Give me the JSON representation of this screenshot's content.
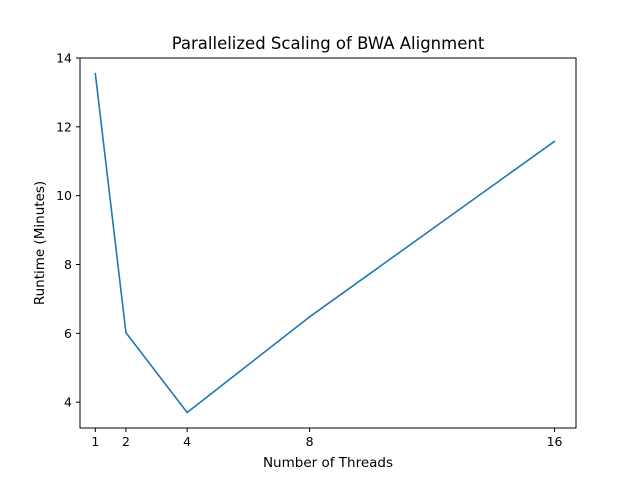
{
  "chart_data": {
    "type": "line",
    "title": "Parallelized Scaling of BWA Alignment",
    "xlabel": "Number of Threads",
    "ylabel": "Runtime (Minutes)",
    "x": [
      1,
      2,
      4,
      8,
      16
    ],
    "xticks": [
      "1",
      "2",
      "4",
      "8",
      "16"
    ],
    "xlim": [
      0.5,
      16.7
    ],
    "yticks": [
      "4",
      "6",
      "8",
      "10",
      "12",
      "14"
    ],
    "ylim": [
      3.25,
      14.0
    ],
    "grid": false,
    "series": [
      {
        "values": [
          13.55,
          6.02,
          3.7,
          6.48,
          11.58
        ],
        "color": "#1f77b4"
      }
    ]
  }
}
